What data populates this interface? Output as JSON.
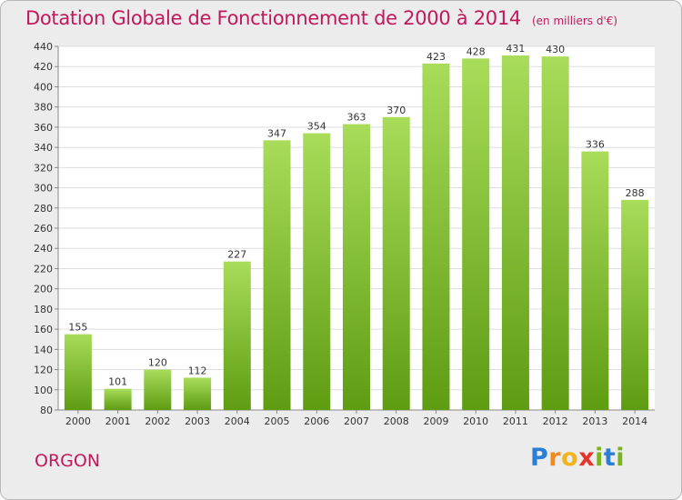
{
  "title": "Dotation Globale de Fonctionnement de 2000 à 2014",
  "unit": "(en milliers d'€)",
  "commune": "ORGON",
  "logo": {
    "text": "Proxiti",
    "letters": [
      {
        "char": "P",
        "color": "#2a7fd4"
      },
      {
        "char": "r",
        "color": "#f08a1c"
      },
      {
        "char": "o",
        "color": "#f0b41c"
      },
      {
        "char": "x",
        "color": "#e8322c"
      },
      {
        "char": "i",
        "color": "#7ab41c"
      },
      {
        "char": "t",
        "color": "#2a7fd4"
      },
      {
        "char": "i",
        "color": "#7ab41c"
      }
    ]
  },
  "colors": {
    "accent": "#c2185b",
    "bar_top": "#a8dc5a",
    "bar_bottom": "#5e9c12",
    "plot_bg": "#ffffff",
    "grid": "#dddddd",
    "text": "#333333"
  },
  "chart_data": {
    "type": "bar",
    "categories": [
      "2000",
      "2001",
      "2002",
      "2003",
      "2004",
      "2005",
      "2006",
      "2007",
      "2008",
      "2009",
      "2010",
      "2011",
      "2012",
      "2013",
      "2014"
    ],
    "values": [
      155,
      101,
      120,
      112,
      227,
      347,
      354,
      363,
      370,
      423,
      428,
      431,
      430,
      336,
      288
    ],
    "ylim": [
      80,
      440
    ],
    "yticks": [
      80,
      100,
      120,
      140,
      160,
      180,
      200,
      220,
      240,
      260,
      280,
      300,
      320,
      340,
      360,
      380,
      400,
      420,
      440
    ],
    "grid": true,
    "data_labels": true
  }
}
